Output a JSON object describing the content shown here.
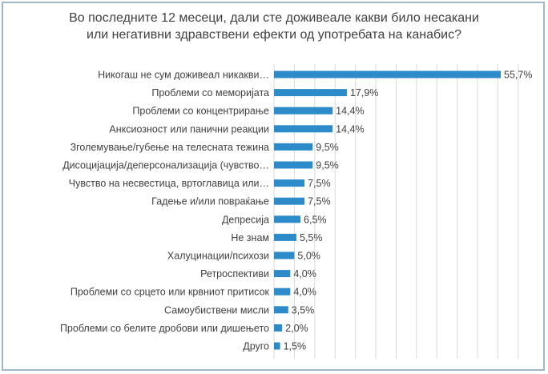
{
  "title_line1": "Во последните 12 месеци, дали сте доживеале какви било несакани",
  "title_line2": "или негативни здравствени ефекти од употребата на канабис?",
  "colors": {
    "bar": "#2e8bc9",
    "grid": "#d9d9d9",
    "text": "#404040",
    "frame": "#9fb7c9"
  },
  "chart_data": {
    "type": "bar",
    "orientation": "horizontal",
    "title": "Во последните 12 месеци, дали сте доживеале какви било несакани или негативни здравствени ефекти од употребата на канабис?",
    "categories": [
      "Никогаш не сум доживеал никакви…",
      "Проблеми со меморијата",
      "Проблеми со концентрирање",
      "Анксиозност или панични реакции",
      "Зголемување/губење на телесната тежина",
      "Дисоцијација/деперсонализација (чувство…",
      "Чувство на несвестица, вртоглавица или…",
      "Гадење и/или повраќање",
      "Депресија",
      "Не знам",
      "Халуцинации/психози",
      "Ретроспективи",
      "Проблеми со срцето или крвниот притисок",
      "Самоубиствени мисли",
      "Проблеми со белите дробови или дишењето",
      "Друго"
    ],
    "values": [
      55.7,
      17.9,
      14.4,
      14.4,
      9.5,
      9.5,
      7.5,
      7.5,
      6.5,
      5.5,
      5.0,
      4.0,
      4.0,
      3.5,
      2.0,
      1.5
    ],
    "value_labels": [
      "55,7%",
      "17,9%",
      "14,4%",
      "14,4%",
      "9,5%",
      "9,5%",
      "7,5%",
      "7,5%",
      "6,5%",
      "5,5%",
      "5,0%",
      "4,0%",
      "4,0%",
      "3,5%",
      "2,0%",
      "1,5%"
    ],
    "xlim": [
      0,
      60
    ],
    "grid": true,
    "legend": "none"
  }
}
